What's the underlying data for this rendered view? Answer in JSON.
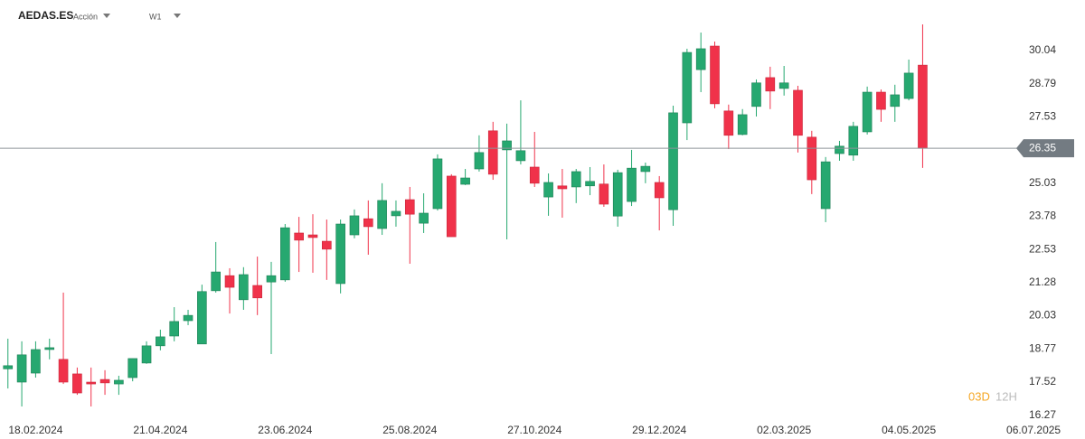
{
  "chart_data": {
    "type": "candlestick",
    "title": "AEDAS.ES",
    "subtitle": "Acción",
    "interval": "W1",
    "countdown": [
      "03D",
      "12H"
    ],
    "up_color": "#26a870",
    "down_color": "#f0324a",
    "last_price": 26.35,
    "grid": false,
    "x": [
      "04.02.2024",
      "11.02.2024",
      "18.02.2024",
      "25.02.2024",
      "03.03.2024",
      "10.03.2024",
      "17.03.2024",
      "24.03.2024",
      "31.03.2024",
      "07.04.2024",
      "14.04.2024",
      "21.04.2024",
      "28.04.2024",
      "05.05.2024",
      "12.05.2024",
      "19.05.2024",
      "26.05.2024",
      "02.06.2024",
      "09.06.2024",
      "16.06.2024",
      "23.06.2024",
      "30.06.2024",
      "07.07.2024",
      "14.07.2024",
      "21.07.2024",
      "28.07.2024",
      "04.08.2024",
      "11.08.2024",
      "18.08.2024",
      "25.08.2024",
      "01.09.2024",
      "08.09.2024",
      "15.09.2024",
      "22.09.2024",
      "29.09.2024",
      "06.10.2024",
      "13.10.2024",
      "20.10.2024",
      "27.10.2024",
      "03.11.2024",
      "10.11.2024",
      "17.11.2024",
      "24.11.2024",
      "01.12.2024",
      "08.12.2024",
      "15.12.2024",
      "22.12.2024",
      "29.12.2024",
      "05.01.2025",
      "12.01.2025",
      "19.01.2025",
      "26.01.2025",
      "02.02.2025",
      "09.02.2025",
      "16.02.2025",
      "23.02.2025",
      "02.03.2025",
      "09.03.2025",
      "16.03.2025",
      "23.03.2025",
      "30.03.2025",
      "06.04.2025",
      "13.04.2025",
      "20.04.2025",
      "27.04.2025",
      "04.05.2025",
      "11.05.2025"
    ],
    "open": [
      18.02,
      17.52,
      17.86,
      18.75,
      18.38,
      17.83,
      17.52,
      17.62,
      17.45,
      17.69,
      18.24,
      18.89,
      19.26,
      19.84,
      18.96,
      20.97,
      21.54,
      20.63,
      21.17,
      21.3,
      21.38,
      23.15,
      23.08,
      22.84,
      21.24,
      23.08,
      23.69,
      23.32,
      23.8,
      24.41,
      23.52,
      24.07,
      25.3,
      24.99,
      25.57,
      27.01,
      26.29,
      25.88,
      25.64,
      24.51,
      24.93,
      24.89,
      24.93,
      25.0,
      23.79,
      24.34,
      25.47,
      25.06,
      24.03,
      27.31,
      29.32,
      30.21,
      27.76,
      26.87,
      27.93,
      29.02,
      28.61,
      28.54,
      26.77,
      24.07,
      26.15,
      26.09,
      26.97,
      28.47,
      27.93,
      28.23,
      29.49
    ],
    "high": [
      19.16,
      19.06,
      19.06,
      19.16,
      20.9,
      18.07,
      18.07,
      17.97,
      17.76,
      18.41,
      19.06,
      19.5,
      20.35,
      20.25,
      21.2,
      22.81,
      21.82,
      21.86,
      22.26,
      22.06,
      23.49,
      23.76,
      23.86,
      23.66,
      23.66,
      24.04,
      24.38,
      25.03,
      24.38,
      24.89,
      24.65,
      26.12,
      25.37,
      25.57,
      26.84,
      27.35,
      27.28,
      28.16,
      26.97,
      25.4,
      25.57,
      25.57,
      25.64,
      25.74,
      25.54,
      26.29,
      25.81,
      25.3,
      27.96,
      30.11,
      30.72,
      30.38,
      28.0,
      27.83,
      28.95,
      29.43,
      29.46,
      28.71,
      27.01,
      26.02,
      26.63,
      27.35,
      28.68,
      28.57,
      28.75,
      29.7,
      31.03
    ],
    "low": [
      17.28,
      16.6,
      17.69,
      18.38,
      17.45,
      17.04,
      16.6,
      17.04,
      17.04,
      17.55,
      18.21,
      18.72,
      19.06,
      19.67,
      18.96,
      20.9,
      20.11,
      20.25,
      20.05,
      18.58,
      21.31,
      21.68,
      21.65,
      21.38,
      20.87,
      22.95,
      22.33,
      23.08,
      23.39,
      21.99,
      23.15,
      24.0,
      23.01,
      24.96,
      25.47,
      25.16,
      22.91,
      25.74,
      24.89,
      23.8,
      23.73,
      24.28,
      24.58,
      24.14,
      23.39,
      24.17,
      25.03,
      23.25,
      23.42,
      26.66,
      28.47,
      27.86,
      26.32,
      26.84,
      27.55,
      27.83,
      28.34,
      26.19,
      24.62,
      23.56,
      25.88,
      25.88,
      26.87,
      27.35,
      27.35,
      28.16,
      25.61
    ],
    "close": [
      18.14,
      18.55,
      18.75,
      18.82,
      17.52,
      17.11,
      17.45,
      17.49,
      17.59,
      18.41,
      18.89,
      19.23,
      19.81,
      20.04,
      20.94,
      21.68,
      21.1,
      21.58,
      20.7,
      21.54,
      23.35,
      22.88,
      22.98,
      22.54,
      23.49,
      23.8,
      23.39,
      24.38,
      23.97,
      23.86,
      23.9,
      25.95,
      23.01,
      25.23,
      26.19,
      25.37,
      26.63,
      26.26,
      25.03,
      25.06,
      24.82,
      25.47,
      25.1,
      24.24,
      25.43,
      25.6,
      25.67,
      24.48,
      27.69,
      29.97,
      30.11,
      28.03,
      26.84,
      27.62,
      28.82,
      28.51,
      28.82,
      26.84,
      25.16,
      25.84,
      26.43,
      27.18,
      28.47,
      27.82,
      28.37,
      29.19,
      26.35
    ],
    "xlim": [
      "31.01.2024",
      "01.08.2025"
    ],
    "xticks": [
      "18.02.2024",
      "21.04.2024",
      "23.06.2024",
      "25.08.2024",
      "27.10.2024",
      "29.12.2024",
      "02.03.2025",
      "04.05.2025",
      "06.07.2025"
    ],
    "ylim": [
      16.19,
      31.95
    ],
    "yticks": [
      30.04,
      28.79,
      27.53,
      25.03,
      23.78,
      22.53,
      21.28,
      20.03,
      18.77,
      17.52,
      16.27
    ]
  }
}
